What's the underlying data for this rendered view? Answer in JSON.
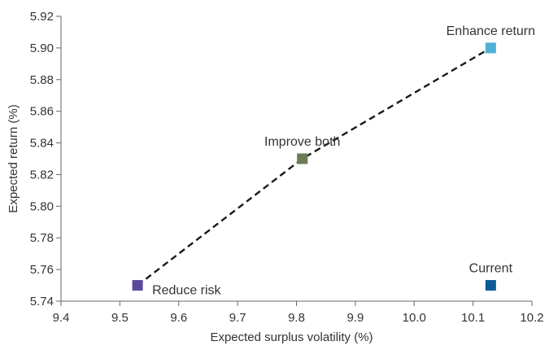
{
  "chart_data": {
    "type": "scatter",
    "title": "",
    "xlabel": "Expected surplus volatility (%)",
    "ylabel": "Expected return (%)",
    "xlim": [
      9.4,
      10.2
    ],
    "ylim": [
      5.74,
      5.92
    ],
    "x_ticks": [
      "9.4",
      "9.5",
      "9.6",
      "9.7",
      "9.8",
      "9.9",
      "10.0",
      "10.1",
      "10.2"
    ],
    "y_ticks": [
      "5.74",
      "5.76",
      "5.78",
      "5.80",
      "5.82",
      "5.84",
      "5.86",
      "5.88",
      "5.90",
      "5.92"
    ],
    "grid": false,
    "legend": "none",
    "points": [
      {
        "label": "Reduce risk",
        "x": 9.53,
        "y": 5.75,
        "color": "#5b4a9b",
        "label_side": "right"
      },
      {
        "label": "Improve both",
        "x": 9.81,
        "y": 5.83,
        "color": "#6b7c57",
        "label_side": "above"
      },
      {
        "label": "Enhance return",
        "x": 10.13,
        "y": 5.9,
        "color": "#4fb1d8",
        "label_side": "above"
      },
      {
        "label": "Current",
        "x": 10.13,
        "y": 5.75,
        "color": "#0d5b94",
        "label_side": "above"
      }
    ],
    "frontier": {
      "style": "dashed",
      "color": "#1a1a1a",
      "through": [
        "Reduce risk",
        "Improve both",
        "Enhance return"
      ]
    }
  }
}
